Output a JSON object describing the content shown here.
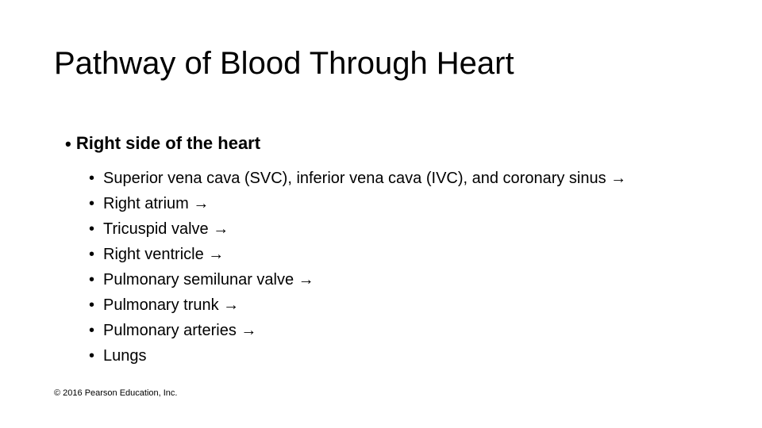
{
  "slide": {
    "title": "Pathway of Blood Through Heart",
    "title_fontsize": 40,
    "title_color": "#000000",
    "background_color": "#ffffff",
    "level1_bullet_char": "•",
    "level1_text": "Right side of the heart",
    "level1_fontsize": 22,
    "level1_fontweight": "700",
    "sub_bullet_char": "•",
    "sub_fontsize": 20,
    "arrow_glyph": "→",
    "items": [
      "Superior vena cava (SVC), inferior vena cava (IVC), and coronary sinus →",
      "Right atrium →",
      "Tricuspid valve →",
      "Right ventricle →",
      "Pulmonary semilunar valve →",
      "Pulmonary trunk →",
      "Pulmonary arteries →",
      "Lungs"
    ],
    "copyright": "© 2016 Pearson Education, Inc.",
    "copyright_fontsize": 11
  }
}
